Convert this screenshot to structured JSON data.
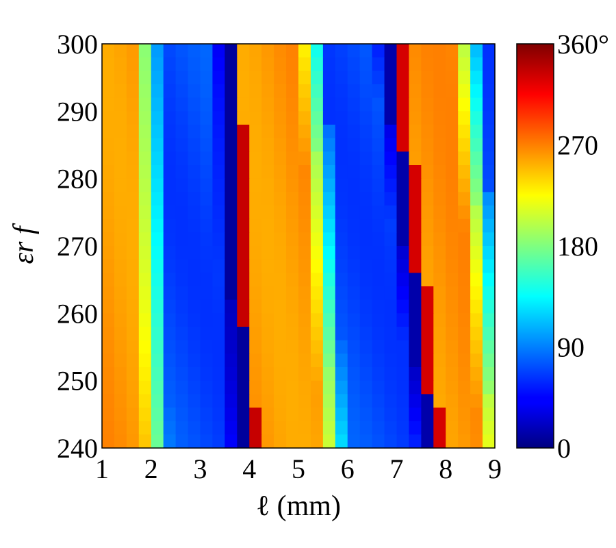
{
  "chart_data": {
    "type": "heatmap",
    "title": "",
    "xlabel": "ℓ (mm)",
    "ylabel": "εr f",
    "x_ticks": [
      "1",
      "2",
      "3",
      "4",
      "5",
      "6",
      "7",
      "8",
      "9"
    ],
    "y_ticks": [
      "300",
      "290",
      "280",
      "270",
      "260",
      "250",
      "240"
    ],
    "xlim": [
      1,
      9
    ],
    "ylim": [
      240,
      300
    ],
    "colorbar": {
      "colormap": "jet",
      "range": [
        0,
        360
      ],
      "tick_labels": [
        "360°",
        "270",
        "180",
        "90",
        "0"
      ],
      "tick_values": [
        360,
        270,
        180,
        90,
        0
      ]
    },
    "grid": "32 columns × 30 rows",
    "value_unit": "degrees",
    "description_of_bands": [
      {
        "band": "orange",
        "approx_value": 265
      },
      {
        "band": "blue",
        "approx_value": 75
      },
      {
        "band": "dark-red edge",
        "approx_value": 340
      },
      {
        "band": "dark-blue edge",
        "approx_value": 10
      }
    ]
  }
}
